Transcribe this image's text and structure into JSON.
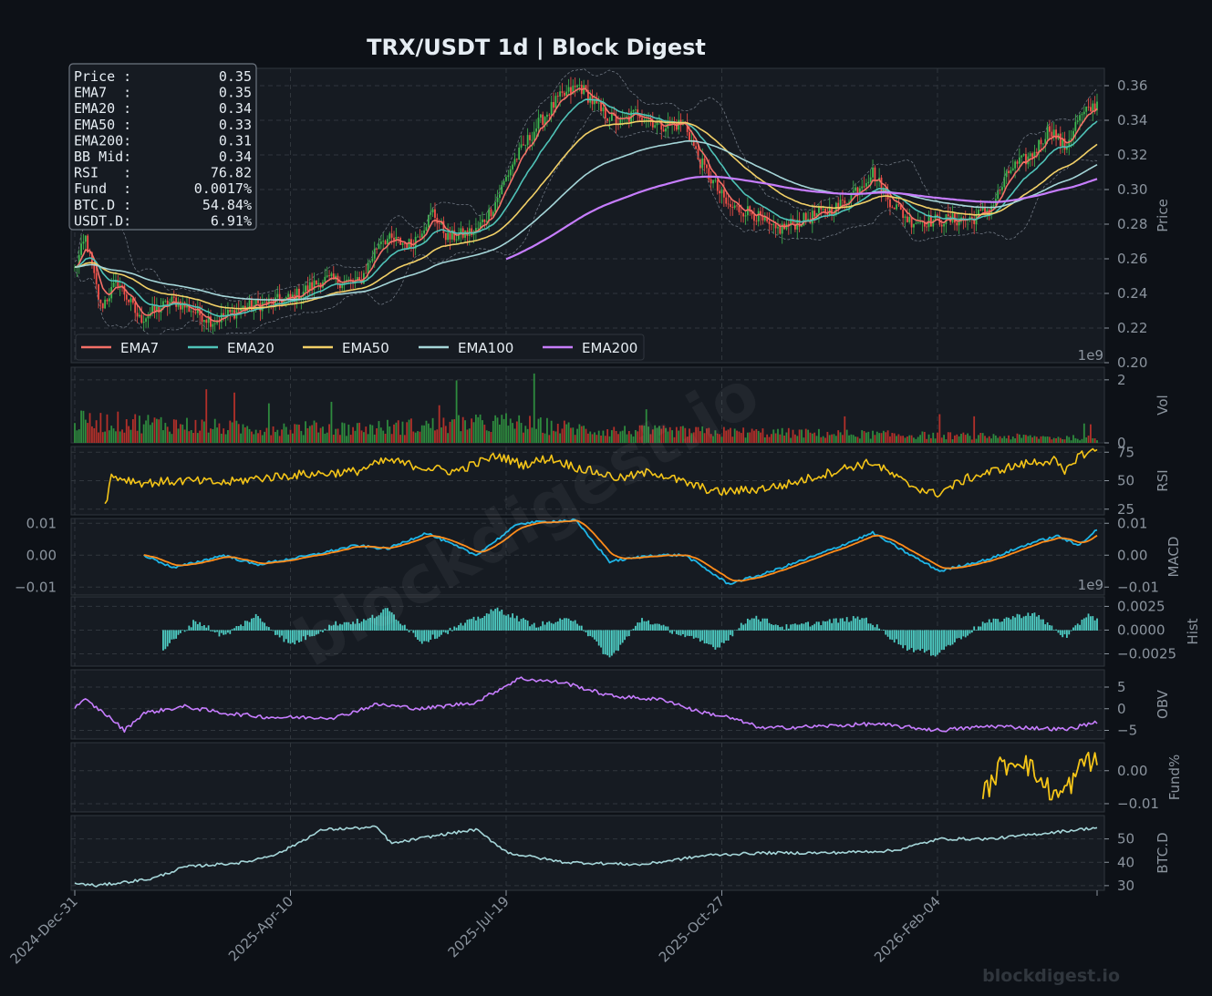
{
  "title": "TRX/USDT  1d  |  Block Digest",
  "watermark": "blockdigest.io",
  "footer": "blockdigest.io",
  "colors": {
    "background": "#0d1117",
    "panel": "#161b22",
    "grid": "#30363d",
    "text": "#8b949e",
    "up": "#3fb950",
    "down": "#f85149",
    "ema7": "#f47067",
    "ema20": "#4fc3b8",
    "ema50": "#f2d067",
    "ema100": "#a5d6d9",
    "ema200": "#c77dff",
    "rsi": "#f5c518",
    "macd": "#1fb5e6",
    "signal": "#ff8c1a",
    "hist": "#4ecdc4",
    "obv": "#c77dff",
    "funding": "#f5c518",
    "btcd": "#a5d6d9"
  },
  "info_box": [
    {
      "label": "Price :",
      "value": "0.35"
    },
    {
      "label": "EMA7  :",
      "value": "0.35"
    },
    {
      "label": "EMA20 :",
      "value": "0.34"
    },
    {
      "label": "EMA50 :",
      "value": "0.33"
    },
    {
      "label": "EMA200:",
      "value": "0.31"
    },
    {
      "label": "BB Mid:",
      "value": "0.34"
    },
    {
      "label": "RSI   :",
      "value": "76.82"
    },
    {
      "label": "Fund  :",
      "value": "0.0017%"
    },
    {
      "label": "BTC.D :",
      "value": "54.84%"
    },
    {
      "label": "USDT.D:",
      "value": "6.91%"
    }
  ],
  "legend": [
    "EMA7",
    "EMA20",
    "EMA50",
    "EMA100",
    "EMA200"
  ],
  "chart_data": {
    "type": "line",
    "x_start": "2024-12-31",
    "x_end": "2026-04-19",
    "x_ticks": [
      "2024-Dec-31",
      "2025-Apr-10",
      "2025-Jul-19",
      "2025-Oct-27",
      "2026-Feb-04"
    ],
    "grid": true,
    "legend_position": "bottom-left",
    "panels": [
      {
        "id": "price",
        "ylabel": "Price",
        "ylim": [
          0.2,
          0.37
        ],
        "yticks": [
          "0.20",
          "0.22",
          "0.24",
          "0.26",
          "0.28",
          "0.30",
          "0.32",
          "0.34",
          "0.36"
        ],
        "ytick_values": [
          0.2,
          0.22,
          0.24,
          0.26,
          0.28,
          0.3,
          0.32,
          0.34,
          0.36
        ],
        "anchors": [
          [
            "2024-12-31",
            0.254
          ],
          [
            "2025-01-05",
            0.272
          ],
          [
            "2025-01-12",
            0.232
          ],
          [
            "2025-01-20",
            0.247
          ],
          [
            "2025-01-30",
            0.225
          ],
          [
            "2025-02-15",
            0.236
          ],
          [
            "2025-03-05",
            0.224
          ],
          [
            "2025-03-20",
            0.232
          ],
          [
            "2025-04-10",
            0.237
          ],
          [
            "2025-04-25",
            0.248
          ],
          [
            "2025-05-12",
            0.246
          ],
          [
            "2025-05-22",
            0.272
          ],
          [
            "2025-06-05",
            0.268
          ],
          [
            "2025-06-15",
            0.287
          ],
          [
            "2025-06-22",
            0.272
          ],
          [
            "2025-07-05",
            0.276
          ],
          [
            "2025-07-13",
            0.29
          ],
          [
            "2025-07-22",
            0.315
          ],
          [
            "2025-08-03",
            0.338
          ],
          [
            "2025-08-12",
            0.352
          ],
          [
            "2025-08-22",
            0.36
          ],
          [
            "2025-09-01",
            0.345
          ],
          [
            "2025-09-10",
            0.338
          ],
          [
            "2025-09-18",
            0.345
          ],
          [
            "2025-09-28",
            0.337
          ],
          [
            "2025-10-10",
            0.338
          ],
          [
            "2025-10-16",
            0.318
          ],
          [
            "2025-10-30",
            0.29
          ],
          [
            "2025-11-10",
            0.287
          ],
          [
            "2025-11-20",
            0.276
          ],
          [
            "2025-12-05",
            0.283
          ],
          [
            "2025-12-20",
            0.29
          ],
          [
            "2026-01-05",
            0.31
          ],
          [
            "2026-01-12",
            0.295
          ],
          [
            "2026-01-22",
            0.282
          ],
          [
            "2026-02-03",
            0.282
          ],
          [
            "2026-02-20",
            0.283
          ],
          [
            "2026-03-01",
            0.29
          ],
          [
            "2026-03-10",
            0.312
          ],
          [
            "2026-03-20",
            0.32
          ],
          [
            "2026-03-28",
            0.336
          ],
          [
            "2026-04-04",
            0.324
          ],
          [
            "2026-04-10",
            0.34
          ],
          [
            "2026-04-19",
            0.35
          ]
        ]
      },
      {
        "id": "vol",
        "ylabel": "Vol",
        "ylim": [
          0,
          2.4
        ],
        "yticks": [
          "0",
          "2"
        ],
        "ytick_values": [
          0,
          2
        ],
        "exponent": "1e9",
        "anchors": [
          [
            "2024-12-31",
            0.8
          ],
          [
            "2025-02-01",
            0.75
          ],
          [
            "2025-03-15",
            0.55
          ],
          [
            "2025-05-15",
            0.55
          ],
          [
            "2025-07-19",
            0.75
          ],
          [
            "2025-09-01",
            0.45
          ],
          [
            "2025-11-01",
            0.4
          ],
          [
            "2026-01-01",
            0.32
          ],
          [
            "2026-04-19",
            0.18
          ]
        ]
      },
      {
        "id": "rsi",
        "ylabel": "RSI",
        "ylim": [
          20,
          80
        ],
        "yticks": [
          "25",
          "50",
          "75"
        ],
        "ytick_values": [
          25,
          50,
          75
        ],
        "anchors": [
          [
            "2025-01-14",
            28
          ],
          [
            "2025-01-17",
            54
          ],
          [
            "2025-02-01",
            48
          ],
          [
            "2025-02-20",
            50
          ],
          [
            "2025-03-10",
            48
          ],
          [
            "2025-03-25",
            52
          ],
          [
            "2025-04-12",
            55
          ],
          [
            "2025-05-10",
            58
          ],
          [
            "2025-05-25",
            68
          ],
          [
            "2025-06-10",
            62
          ],
          [
            "2025-06-25",
            58
          ],
          [
            "2025-07-15",
            72
          ],
          [
            "2025-07-27",
            64
          ],
          [
            "2025-08-08",
            70
          ],
          [
            "2025-08-20",
            62
          ],
          [
            "2025-09-10",
            52
          ],
          [
            "2025-09-25",
            58
          ],
          [
            "2025-10-10",
            48
          ],
          [
            "2025-10-25",
            40
          ],
          [
            "2025-11-10",
            42
          ],
          [
            "2025-11-25",
            46
          ],
          [
            "2025-12-10",
            54
          ],
          [
            "2025-12-25",
            62
          ],
          [
            "2026-01-05",
            66
          ],
          [
            "2026-01-20",
            48
          ],
          [
            "2026-02-03",
            38
          ],
          [
            "2026-02-18",
            52
          ],
          [
            "2026-03-05",
            60
          ],
          [
            "2026-03-20",
            66
          ],
          [
            "2026-03-30",
            68
          ],
          [
            "2026-04-04",
            56
          ],
          [
            "2026-04-10",
            72
          ],
          [
            "2026-04-19",
            76.8
          ]
        ]
      },
      {
        "id": "macd",
        "ylabel": "MACD",
        "ylim": [
          -0.0125,
          0.0115
        ],
        "yticks": [
          "−0.01",
          "0.00",
          "0.01"
        ],
        "ytick_values": [
          -0.01,
          0,
          0.01
        ],
        "anchors": [
          [
            "2025-02-01",
            0.0
          ],
          [
            "2025-02-15",
            -0.004
          ],
          [
            "2025-03-10",
            0.0
          ],
          [
            "2025-03-25",
            -0.003
          ],
          [
            "2025-04-20",
            0.0
          ],
          [
            "2025-05-10",
            0.003
          ],
          [
            "2025-05-25",
            0.002
          ],
          [
            "2025-06-12",
            0.007
          ],
          [
            "2025-07-05",
            0.0
          ],
          [
            "2025-07-25",
            0.01
          ],
          [
            "2025-08-20",
            0.011
          ],
          [
            "2025-09-05",
            -0.002
          ],
          [
            "2025-09-25",
            0.0
          ],
          [
            "2025-10-10",
            0.0
          ],
          [
            "2025-10-30",
            -0.009
          ],
          [
            "2025-11-15",
            -0.006
          ],
          [
            "2025-12-10",
            0.0
          ],
          [
            "2025-12-25",
            0.004
          ],
          [
            "2026-01-05",
            0.007
          ],
          [
            "2026-01-20",
            0.001
          ],
          [
            "2026-02-05",
            -0.005
          ],
          [
            "2026-03-01",
            -0.001
          ],
          [
            "2026-03-20",
            0.004
          ],
          [
            "2026-04-01",
            0.006
          ],
          [
            "2026-04-10",
            0.003
          ],
          [
            "2026-04-19",
            0.008
          ]
        ]
      },
      {
        "id": "hist",
        "ylabel": "Hist",
        "ylim": [
          -0.0038,
          0.0035
        ],
        "yticks": [
          "−0.0025",
          "0.0000",
          "0.0025"
        ],
        "ytick_values": [
          -0.0025,
          0,
          0.0025
        ],
        "exponent": "1e9",
        "anchors": [
          [
            "2025-02-10",
            -0.002
          ],
          [
            "2025-02-25",
            0.001
          ],
          [
            "2025-03-10",
            -0.0006
          ],
          [
            "2025-03-25",
            0.0015
          ],
          [
            "2025-04-10",
            -0.0015
          ],
          [
            "2025-05-01",
            0.0007
          ],
          [
            "2025-05-15",
            0.001
          ],
          [
            "2025-05-25",
            0.0022
          ],
          [
            "2025-06-10",
            -0.0012
          ],
          [
            "2025-06-25",
            0.0002
          ],
          [
            "2025-07-15",
            0.0022
          ],
          [
            "2025-08-01",
            0.0005
          ],
          [
            "2025-08-20",
            0.0012
          ],
          [
            "2025-09-05",
            -0.003
          ],
          [
            "2025-09-20",
            0.0012
          ],
          [
            "2025-10-10",
            -0.0006
          ],
          [
            "2025-10-25",
            -0.0018
          ],
          [
            "2025-11-10",
            0.0015
          ],
          [
            "2025-11-25",
            0.0003
          ],
          [
            "2025-12-15",
            0.0009
          ],
          [
            "2026-01-01",
            0.0013
          ],
          [
            "2026-01-20",
            -0.0018
          ],
          [
            "2026-02-03",
            -0.0025
          ],
          [
            "2026-02-25",
            0.0007
          ],
          [
            "2026-03-20",
            0.0018
          ],
          [
            "2026-04-05",
            -0.0008
          ],
          [
            "2026-04-15",
            0.0018
          ],
          [
            "2026-04-19",
            0.001
          ]
        ]
      },
      {
        "id": "obv",
        "ylabel": "OBV",
        "ylim": [
          -7,
          9
        ],
        "yticks": [
          "−5",
          "0",
          "5"
        ],
        "ytick_values": [
          -5,
          0,
          5
        ],
        "anchors": [
          [
            "2024-12-31",
            0.5
          ],
          [
            "2025-01-05",
            2
          ],
          [
            "2025-01-15",
            -1.5
          ],
          [
            "2025-01-23",
            -5
          ],
          [
            "2025-02-01",
            -1
          ],
          [
            "2025-02-20",
            0.5
          ],
          [
            "2025-03-10",
            -1
          ],
          [
            "2025-04-01",
            -2
          ],
          [
            "2025-05-01",
            -2
          ],
          [
            "2025-05-20",
            1
          ],
          [
            "2025-06-10",
            0
          ],
          [
            "2025-07-05",
            1.5
          ],
          [
            "2025-07-25",
            7
          ],
          [
            "2025-08-15",
            6
          ],
          [
            "2025-09-05",
            3
          ],
          [
            "2025-10-01",
            2
          ],
          [
            "2025-10-15",
            -0.5
          ],
          [
            "2025-10-30",
            -2
          ],
          [
            "2025-11-15",
            -4.5
          ],
          [
            "2025-12-15",
            -4
          ],
          [
            "2026-01-05",
            -3.5
          ],
          [
            "2026-02-05",
            -5
          ],
          [
            "2026-03-01",
            -4
          ],
          [
            "2026-04-05",
            -4.8
          ],
          [
            "2026-04-19",
            -3
          ]
        ]
      },
      {
        "id": "funding",
        "ylabel": "Fund%",
        "ylim": [
          -0.0125,
          0.0085
        ],
        "yticks": [
          "−0.01",
          "0.00"
        ],
        "ytick_values": [
          -0.01,
          0
        ],
        "anchors": [
          [
            "2026-02-25",
            -0.008
          ],
          [
            "2026-03-05",
            0.001
          ],
          [
            "2026-03-15",
            0.004
          ],
          [
            "2026-03-25",
            -0.004
          ],
          [
            "2026-04-01",
            -0.008
          ],
          [
            "2026-04-08",
            -0.003
          ],
          [
            "2026-04-14",
            0.004
          ],
          [
            "2026-04-19",
            0.002
          ]
        ]
      },
      {
        "id": "btcd",
        "ylabel": "BTC.D",
        "ylim": [
          28,
          60
        ],
        "yticks": [
          "30",
          "40",
          "50"
        ],
        "ytick_values": [
          30,
          40,
          50
        ],
        "anchors": [
          [
            "2024-12-31",
            31
          ],
          [
            "2025-01-10",
            30
          ],
          [
            "2025-02-05",
            33
          ],
          [
            "2025-02-20",
            38
          ],
          [
            "2025-03-20",
            40
          ],
          [
            "2025-04-05",
            44
          ],
          [
            "2025-04-25",
            54
          ],
          [
            "2025-05-20",
            55
          ],
          [
            "2025-05-27",
            48
          ],
          [
            "2025-06-20",
            52
          ],
          [
            "2025-07-05",
            54
          ],
          [
            "2025-07-20",
            44
          ],
          [
            "2025-08-15",
            40
          ],
          [
            "2025-09-20",
            39
          ],
          [
            "2025-10-20",
            43
          ],
          [
            "2025-11-15",
            44
          ],
          [
            "2025-12-15",
            44
          ],
          [
            "2026-01-15",
            45
          ],
          [
            "2026-02-05",
            50
          ],
          [
            "2026-03-01",
            50
          ],
          [
            "2026-04-19",
            54.84
          ]
        ]
      }
    ]
  }
}
